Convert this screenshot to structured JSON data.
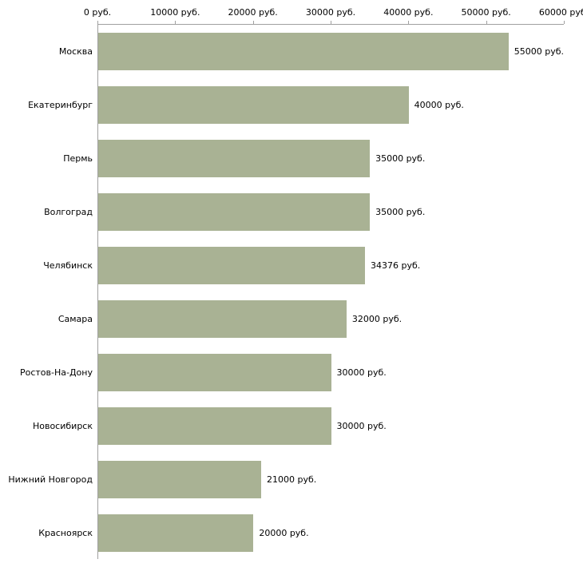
{
  "chart_data": {
    "type": "bar",
    "orientation": "horizontal",
    "title": "",
    "xlabel": "",
    "ylabel": "",
    "xlim": [
      0,
      60000
    ],
    "grid": false,
    "legend": false,
    "x_tick_values": [
      0,
      10000,
      20000,
      30000,
      40000,
      50000,
      60000
    ],
    "x_tick_labels": [
      "0 руб.",
      "10000 руб.",
      "20000 руб.",
      "30000 руб.",
      "40000 руб.",
      "50000 руб.",
      "60000 руб."
    ],
    "categories": [
      "Москва",
      "Екатеринбург",
      "Пермь",
      "Волгоград",
      "Челябинск",
      "Самара",
      "Ростов-На-Дону",
      "Новосибирск",
      "Нижний Новгород",
      "Красноярск"
    ],
    "values": [
      55000,
      40000,
      35000,
      35000,
      34376,
      32000,
      30000,
      30000,
      21000,
      20000
    ],
    "value_labels": [
      "55000 руб.",
      "40000 руб.",
      "35000 руб.",
      "35000 руб.",
      "34376 руб.",
      "32000 руб.",
      "30000 руб.",
      "30000 руб.",
      "21000 руб.",
      "20000 руб."
    ],
    "layout": {
      "bar_color": "#a9b294",
      "axis_color": "#a0a0a0",
      "text_color": "#000000",
      "background": "#ffffff"
    }
  }
}
